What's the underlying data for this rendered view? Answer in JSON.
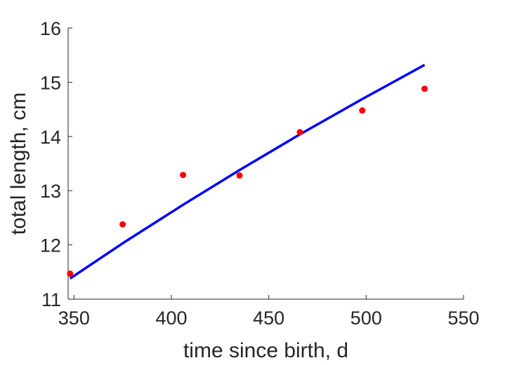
{
  "chart_data": {
    "type": "scatter",
    "title": "",
    "xlabel": "time since birth, d",
    "ylabel": "total length, cm",
    "xlim": [
      347,
      550
    ],
    "ylim": [
      11,
      16
    ],
    "x_ticks": [
      350,
      400,
      450,
      500,
      550
    ],
    "y_ticks": [
      11,
      12,
      13,
      14,
      15,
      16
    ],
    "grid": false,
    "series": [
      {
        "kind": "points",
        "color": "#ff0000",
        "x": [
          348,
          375,
          406,
          435,
          466,
          498,
          530
        ],
        "y": [
          11.47,
          12.38,
          13.29,
          13.28,
          14.08,
          14.48,
          14.88
        ]
      },
      {
        "kind": "line",
        "color": "#0000ff",
        "x": [
          348,
          375,
          406,
          435,
          466,
          498,
          530
        ],
        "y": [
          11.38,
          12.03,
          12.74,
          13.38,
          14.04,
          14.69,
          15.32
        ]
      }
    ]
  }
}
